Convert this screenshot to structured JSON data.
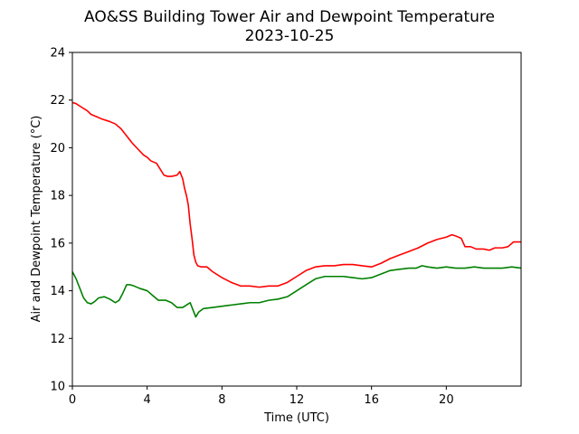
{
  "chart_data": {
    "type": "line",
    "title": "AO&SS Building Tower Air and Dewpoint Temperature",
    "subtitle": "2023-10-25",
    "xlabel": "Time (UTC)",
    "ylabel": "Air and Dewpoint Temperature (°C)",
    "xlim": [
      0,
      24
    ],
    "ylim": [
      10,
      24
    ],
    "xticks": [
      0,
      4,
      8,
      12,
      16,
      20
    ],
    "yticks": [
      10,
      12,
      14,
      16,
      18,
      20,
      22,
      24
    ],
    "grid": false,
    "legend": "none",
    "series": [
      {
        "color": "#ff0000",
        "x": [
          0,
          0.2,
          0.5,
          0.8,
          1.0,
          1.3,
          1.6,
          2.0,
          2.3,
          2.6,
          2.9,
          3.2,
          3.5,
          3.8,
          4.0,
          4.2,
          4.5,
          4.7,
          4.9,
          5.1,
          5.3,
          5.6,
          5.75,
          5.9,
          6.0,
          6.1,
          6.2,
          6.3,
          6.4,
          6.5,
          6.6,
          6.7,
          6.9,
          7.2,
          7.5,
          8.0,
          8.5,
          9.0,
          9.5,
          10.0,
          10.5,
          11.0,
          11.5,
          12.0,
          12.5,
          13.0,
          13.5,
          14.0,
          14.5,
          15.0,
          15.5,
          16.0,
          16.5,
          17.0,
          17.5,
          18.0,
          18.5,
          19.0,
          19.5,
          20.0,
          20.3,
          20.5,
          20.8,
          21.0,
          21.3,
          21.6,
          22.0,
          22.3,
          22.6,
          23.0,
          23.3,
          23.6,
          24.0
        ],
        "y": [
          21.9,
          21.85,
          21.7,
          21.55,
          21.4,
          21.3,
          21.2,
          21.1,
          21.0,
          20.8,
          20.5,
          20.2,
          19.95,
          19.7,
          19.6,
          19.45,
          19.35,
          19.1,
          18.85,
          18.8,
          18.8,
          18.85,
          19.0,
          18.7,
          18.3,
          18.0,
          17.6,
          16.8,
          16.2,
          15.5,
          15.2,
          15.05,
          15.0,
          15.0,
          14.8,
          14.55,
          14.35,
          14.2,
          14.2,
          14.15,
          14.2,
          14.2,
          14.35,
          14.6,
          14.85,
          15.0,
          15.05,
          15.05,
          15.1,
          15.1,
          15.05,
          15.0,
          15.15,
          15.35,
          15.5,
          15.65,
          15.8,
          16.0,
          16.15,
          16.25,
          16.35,
          16.3,
          16.2,
          15.85,
          15.85,
          15.75,
          15.75,
          15.7,
          15.8,
          15.8,
          15.85,
          16.05,
          16.05
        ]
      },
      {
        "color": "#008000",
        "x": [
          0,
          0.2,
          0.4,
          0.6,
          0.8,
          1.0,
          1.2,
          1.4,
          1.7,
          2.0,
          2.3,
          2.5,
          2.7,
          2.9,
          3.1,
          3.3,
          3.6,
          4.0,
          4.3,
          4.6,
          5.0,
          5.3,
          5.6,
          5.9,
          6.1,
          6.3,
          6.45,
          6.6,
          6.75,
          7.0,
          7.5,
          8.0,
          8.5,
          9.0,
          9.5,
          10.0,
          10.5,
          11.0,
          11.5,
          12.0,
          12.5,
          13.0,
          13.5,
          14.0,
          14.5,
          15.0,
          15.5,
          16.0,
          16.5,
          17.0,
          17.5,
          18.0,
          18.4,
          18.7,
          19.0,
          19.5,
          20.0,
          20.5,
          21.0,
          21.5,
          22.0,
          22.5,
          23.0,
          23.5,
          24.0
        ],
        "y": [
          14.8,
          14.5,
          14.1,
          13.7,
          13.5,
          13.45,
          13.55,
          13.7,
          13.75,
          13.65,
          13.5,
          13.6,
          13.9,
          14.25,
          14.25,
          14.2,
          14.1,
          14.0,
          13.8,
          13.6,
          13.6,
          13.5,
          13.3,
          13.3,
          13.4,
          13.5,
          13.2,
          12.9,
          13.1,
          13.25,
          13.3,
          13.35,
          13.4,
          13.45,
          13.5,
          13.5,
          13.6,
          13.65,
          13.75,
          14.0,
          14.25,
          14.5,
          14.6,
          14.6,
          14.6,
          14.55,
          14.5,
          14.55,
          14.7,
          14.85,
          14.9,
          14.95,
          14.95,
          15.05,
          15.0,
          14.95,
          15.0,
          14.95,
          14.95,
          15.0,
          14.95,
          14.95,
          14.95,
          15.0,
          14.95
        ]
      }
    ]
  }
}
